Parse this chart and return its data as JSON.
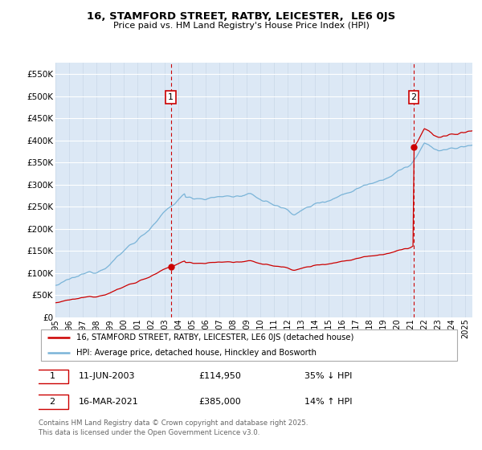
{
  "title": "16, STAMFORD STREET, RATBY, LEICESTER,  LE6 0JS",
  "subtitle": "Price paid vs. HM Land Registry's House Price Index (HPI)",
  "legend_line1": "16, STAMFORD STREET, RATBY, LEICESTER, LE6 0JS (detached house)",
  "legend_line2": "HPI: Average price, detached house, Hinckley and Bosworth",
  "footnote": "Contains HM Land Registry data © Crown copyright and database right 2025.\nThis data is licensed under the Open Government Licence v3.0.",
  "annotation1_date": "11-JUN-2003",
  "annotation1_price": "£114,950",
  "annotation1_hpi": "35% ↓ HPI",
  "annotation2_date": "16-MAR-2021",
  "annotation2_price": "£385,000",
  "annotation2_hpi": "14% ↑ HPI",
  "hpi_color": "#7ab4d8",
  "price_color": "#cc0000",
  "annotation_color": "#cc0000",
  "bg_color": "#dce8f5",
  "ylim": [
    0,
    575000
  ],
  "yticks": [
    0,
    50000,
    100000,
    150000,
    200000,
    250000,
    300000,
    350000,
    400000,
    450000,
    500000,
    550000
  ],
  "sale1_x": 2003.44,
  "sale1_y": 114950,
  "sale2_x": 2021.21,
  "sale2_y": 385000,
  "xmin": 1995.0,
  "xmax": 2025.5
}
